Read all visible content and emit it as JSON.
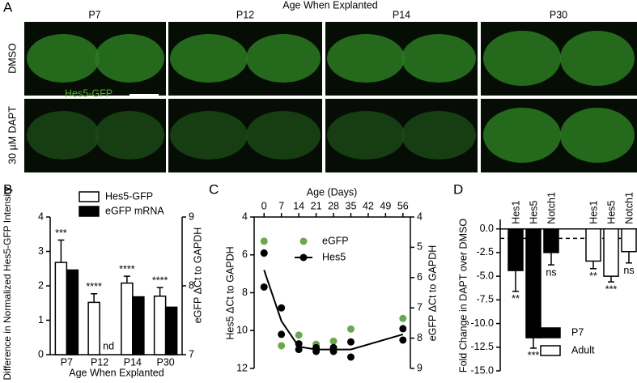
{
  "figure": {
    "panel_a": {
      "label": "A",
      "title": "Age When Explanted",
      "columns": [
        "P7",
        "P12",
        "P14",
        "P30"
      ],
      "rows": [
        "DMSO",
        "30 µM DAPT"
      ],
      "marker": "Hes5-GFP"
    }
  },
  "chart_data": [
    {
      "type": "bar",
      "panel": "B",
      "ylabel": "Difference in Normalized Hes5-GFP Intensity",
      "y2label": "eGFP ΔCt to GAPDH",
      "xlabel": "Age When Explanted",
      "categories": [
        "P7",
        "P12",
        "P14",
        "P30"
      ],
      "ylim": [
        0,
        4
      ],
      "yticks": [
        0,
        1,
        2,
        3,
        4
      ],
      "y2lim": [
        7,
        9
      ],
      "y2ticks": [
        7,
        8,
        9
      ],
      "series": [
        {
          "name": "Hes5-GFP",
          "color": "#ffffff",
          "values": [
            2.68,
            1.52,
            2.08,
            1.7
          ],
          "errors": [
            0.65,
            0.25,
            0.2,
            0.25
          ],
          "annotations": [
            "***",
            "****",
            "****",
            "****"
          ]
        },
        {
          "name": "eGFP mRNA",
          "color": "#000000",
          "axis": "y2",
          "values": [
            8.23,
            null,
            7.84,
            7.69
          ],
          "annotations": [
            null,
            "nd",
            null,
            null
          ]
        }
      ]
    },
    {
      "type": "scatter",
      "panel": "C",
      "xlabel": "Age (Days)",
      "ylabel": "Hes5 ΔCt to GAPDH",
      "y2label": "eGFP ΔCt to GAPDH",
      "xlim": [
        -4,
        59
      ],
      "xticks": [
        0,
        7,
        14,
        21,
        28,
        35,
        42,
        49,
        56
      ],
      "ylim": [
        12,
        4
      ],
      "yticks": [
        4,
        6,
        8,
        10,
        12
      ],
      "y2lim": [
        9,
        4
      ],
      "y2ticks": [
        4,
        5,
        6,
        7,
        8,
        9
      ],
      "series": [
        {
          "name": "eGFP",
          "color": "#6aa84f",
          "axis": "y2",
          "x": [
            0,
            0,
            7,
            14,
            21,
            28,
            35,
            56
          ],
          "values": [
            4.8,
            5.2,
            8.25,
            7.9,
            8.2,
            8.1,
            7.7,
            7.35
          ]
        },
        {
          "name": "Hes5",
          "color": "#000000",
          "x": [
            0,
            0,
            7,
            7,
            14,
            14,
            21,
            21,
            28,
            28,
            35,
            35,
            56,
            56
          ],
          "values": [
            5.9,
            7.7,
            8.8,
            10.2,
            10.7,
            11.0,
            10.9,
            11.1,
            10.9,
            11.1,
            10.6,
            11.4,
            9.9,
            10.5
          ],
          "line_x": [
            0,
            7,
            14,
            21,
            28,
            35,
            56
          ],
          "line_values": [
            6.8,
            9.5,
            10.85,
            11.0,
            11.0,
            11.0,
            10.2
          ]
        }
      ]
    },
    {
      "type": "bar",
      "panel": "D",
      "ylabel": "Fold Change in DAPT over DMSO",
      "categories": [
        "Hes1",
        "Hes5",
        "Notch1"
      ],
      "ylim": [
        -15,
        1
      ],
      "reference_line": -1,
      "yticks": [
        {
          "value": 0,
          "label": "0.0"
        },
        {
          "value": -2.5,
          "label": "-2.5"
        },
        {
          "value": -5,
          "label": "-5.0"
        },
        {
          "value": -7.5,
          "label": "-7.5"
        },
        {
          "value": -10,
          "label": "-10.0"
        },
        {
          "value": -12.5,
          "label": "-12.5"
        },
        {
          "value": -15,
          "label": "-15.0"
        }
      ],
      "series": [
        {
          "name": "P7",
          "color": "#000000",
          "values": [
            -4.4,
            -11.5,
            -2.5
          ],
          "errors": [
            2.2,
            1.1,
            1.3
          ],
          "annotations": [
            "**",
            "***",
            "ns"
          ]
        },
        {
          "name": "Adult",
          "color": "#ffffff",
          "values": [
            -3.4,
            -5.0,
            -2.4
          ],
          "errors": [
            0.8,
            0.6,
            1.2
          ],
          "annotations": [
            "**",
            "***",
            "ns"
          ]
        }
      ]
    }
  ]
}
